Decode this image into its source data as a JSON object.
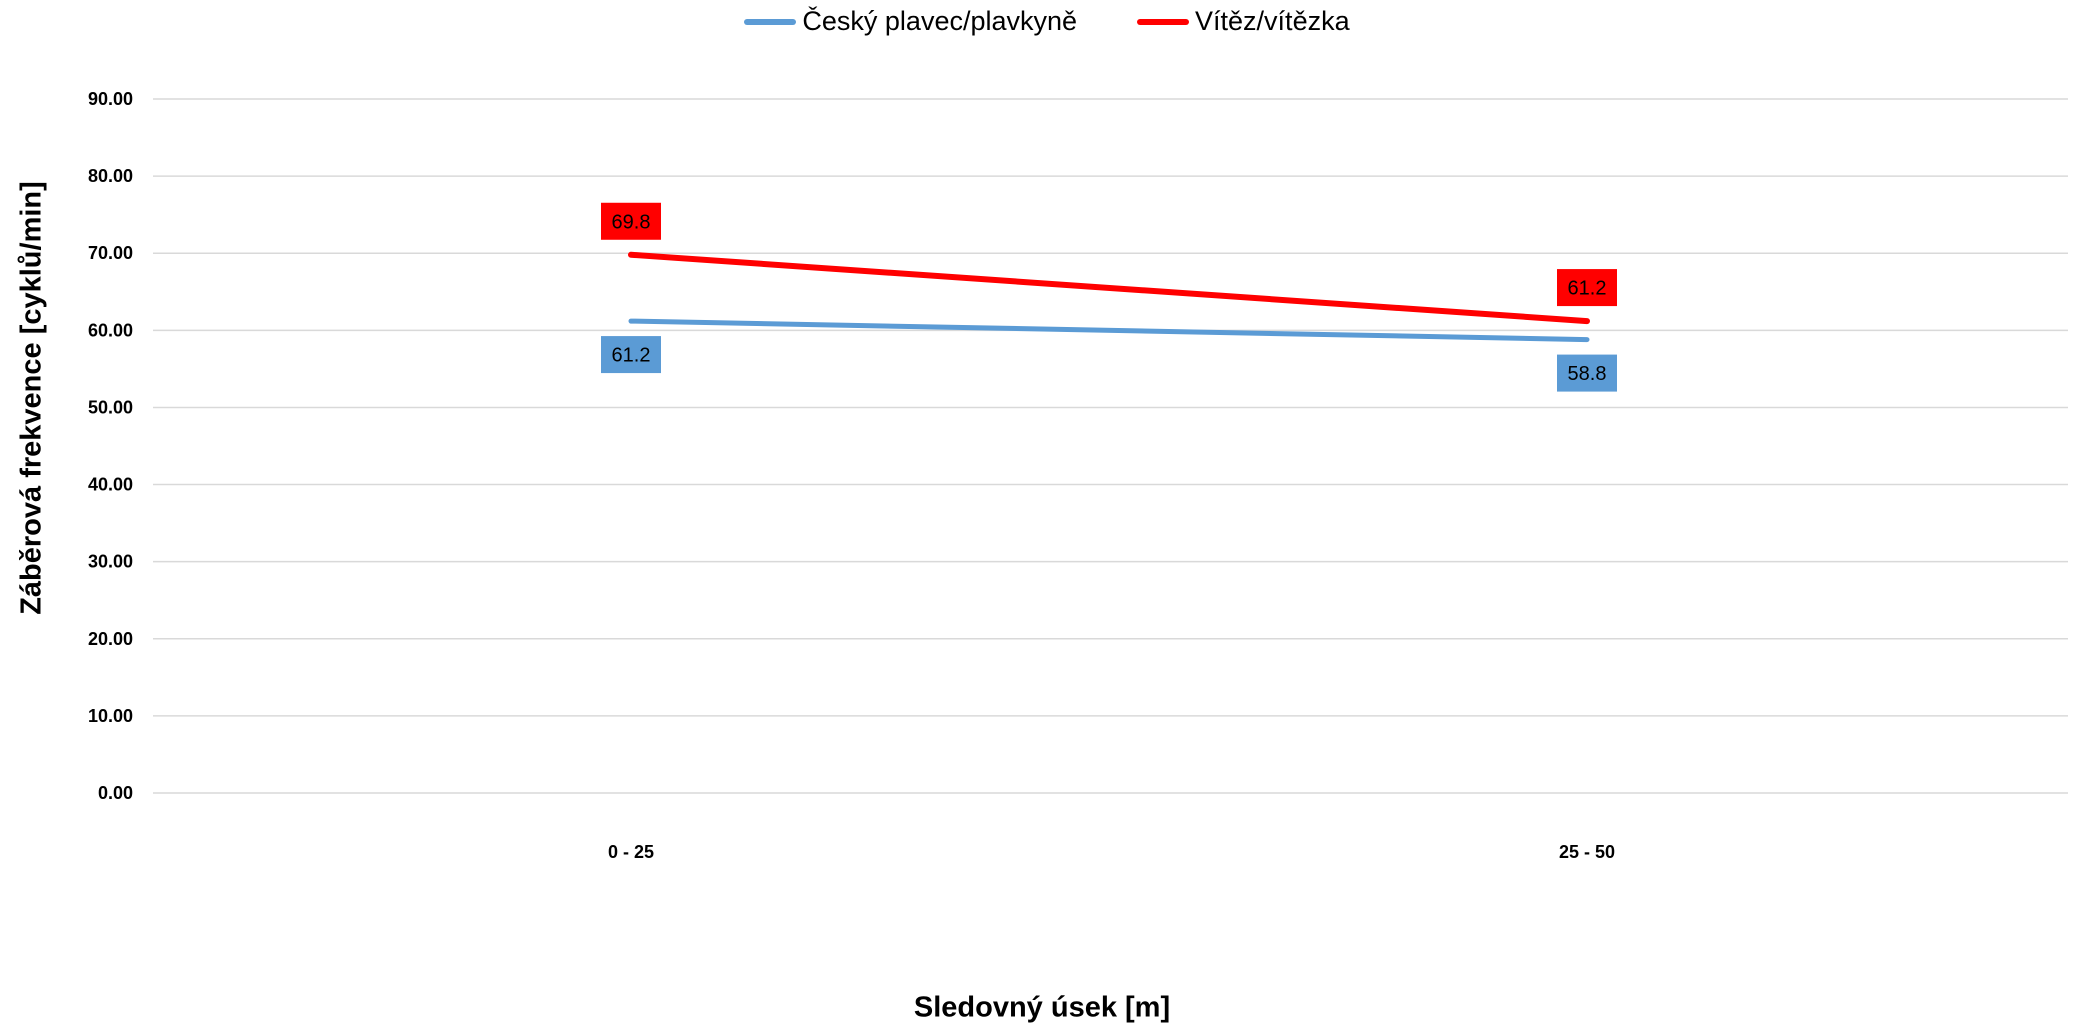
{
  "chart_data": {
    "type": "line",
    "title": "",
    "xlabel": "Sledovný úsek [m]",
    "ylabel": "Záběrová frekvence [cyklů/min]",
    "categories": [
      "0 - 25",
      "25 - 50"
    ],
    "ylim": [
      0,
      90
    ],
    "ytick_values": [
      0,
      10,
      20,
      30,
      40,
      50,
      60,
      70,
      80,
      90
    ],
    "ytick_labels": [
      "0.00",
      "10.00",
      "20.00",
      "30.00",
      "40.00",
      "50.00",
      "60.00",
      "70.00",
      "80.00",
      "90.00"
    ],
    "grid": true,
    "legend_position": "top-center",
    "series": [
      {
        "name": "Český plavec/plavkyně",
        "color": "#5B9BD5",
        "values": [
          61.2,
          58.8
        ],
        "data_labels": [
          "61.2",
          "58.8"
        ],
        "label_position": "below"
      },
      {
        "name": "Vítěz/vítězka",
        "color": "#FF0000",
        "values": [
          69.8,
          61.2
        ],
        "data_labels": [
          "69.8",
          "61.2"
        ],
        "label_position": "above"
      }
    ],
    "gridline_color": "#D9D9D9"
  }
}
